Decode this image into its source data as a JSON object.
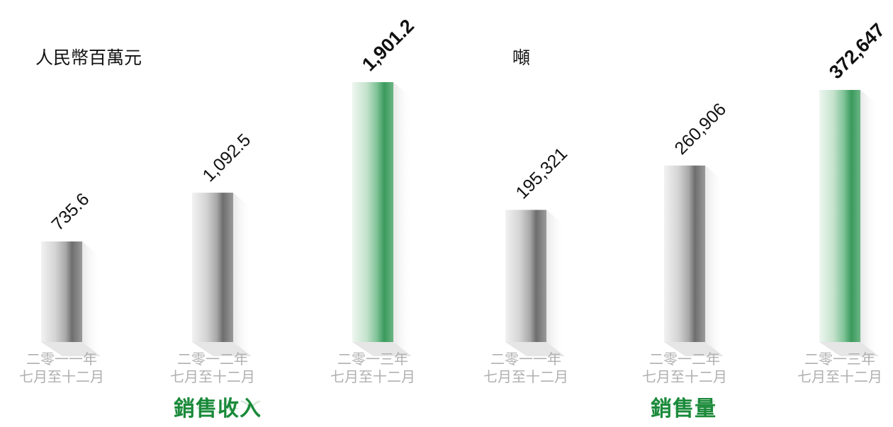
{
  "charts": {
    "revenue": {
      "unit": "人民幣百萬元",
      "section_label": "銷售收入"
    },
    "volume": {
      "unit": "噸",
      "section_label": "銷售量"
    }
  },
  "chart_data": [
    {
      "type": "bar",
      "ylabel": "人民幣百萬元",
      "xlabel": "銷售收入",
      "categories": [
        [
          "二零一一年",
          "七月至十二月"
        ],
        [
          "二零一二年",
          "七月至十二月"
        ],
        [
          "二零一三年",
          "七月至十二月"
        ]
      ],
      "values": [
        735.6,
        1092.5,
        1901.2
      ],
      "value_labels": [
        "735.6",
        "1,092.5",
        "1,901.2"
      ],
      "highlight": [
        false,
        false,
        true
      ],
      "colors": {
        "normal": "#8c8c8c",
        "highlight": "#3a9a5c"
      }
    },
    {
      "type": "bar",
      "ylabel": "噸",
      "xlabel": "銷售量",
      "categories": [
        [
          "二零一一年",
          "七月至十二月"
        ],
        [
          "二零一二年",
          "七月至十二月"
        ],
        [
          "二零一三年",
          "七月至十二月"
        ]
      ],
      "values": [
        195321,
        260906,
        372647
      ],
      "value_labels": [
        "195,321",
        "260,906",
        "372,647"
      ],
      "highlight": [
        false,
        false,
        true
      ],
      "colors": {
        "normal": "#8c8c8c",
        "highlight": "#3a9a5c"
      }
    }
  ]
}
